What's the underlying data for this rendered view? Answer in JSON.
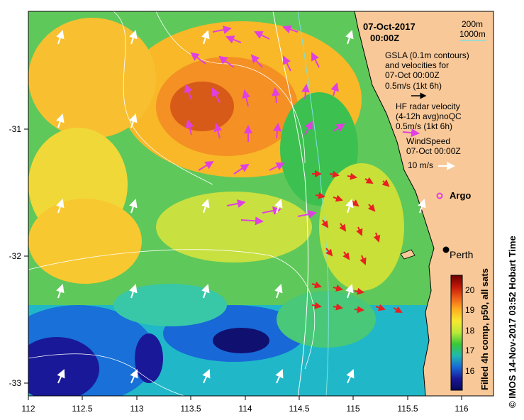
{
  "map": {
    "date": "07-Oct-2017",
    "time": "00:00Z",
    "contour_legend": {
      "shallow": "200m",
      "deep": "1000m"
    },
    "gsla_legend": [
      "GSLA (0.1m contours)",
      "and velocities for",
      "07-Oct 00:00Z",
      "0.5m/s (1kt 6h)"
    ],
    "hf_legend": [
      "HF radar velocity",
      "(4-12h avg)noQC",
      "0.5m/s (1kt 6h)"
    ],
    "wind_legend": [
      "WindSpeed",
      "07-Oct 00:00Z",
      "10 m/s"
    ],
    "argo_label": "Argo",
    "city_label": "Perth",
    "colorbar": {
      "title": "Filled 4h comp, p50, all sats",
      "ticks": [
        "20",
        "19",
        "18",
        "17",
        "16"
      ],
      "colors": [
        "#6b0000",
        "#c21808",
        "#f06018",
        "#ffb020",
        "#f8e830",
        "#b8e838",
        "#38c838",
        "#20b8b0",
        "#1868d8",
        "#181898",
        "#08085a"
      ]
    },
    "credit": "© IMOS 14-Nov-2017 03:52 Hobart Time",
    "x_ticks": [
      "112",
      "112.5",
      "113",
      "113.5",
      "114",
      "114.5",
      "115",
      "115.5",
      "116"
    ],
    "y_ticks": [
      "-31",
      "-32",
      "-33"
    ],
    "colors": {
      "land": "#f8c898",
      "hf_arrow": "#e040e0",
      "gsla_arrow": "#e82020",
      "wind_arrow": "#ffffff",
      "contour_200": "#80e0e0",
      "contour_1000": "#ffffff"
    },
    "symbols": {
      "argo": "argo-float-marker",
      "city": "city-dot"
    }
  }
}
